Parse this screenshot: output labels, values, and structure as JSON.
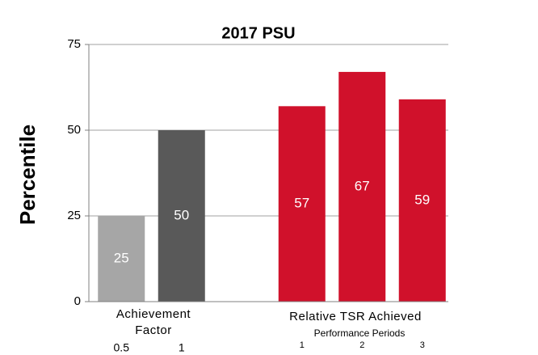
{
  "chart_data": {
    "type": "bar",
    "title": "2017 PSU",
    "y_label": "Percentile",
    "categories": [
      "0.5",
      "1",
      null,
      "1",
      "2",
      "3"
    ],
    "values": [
      25,
      50,
      null,
      57,
      67,
      59
    ],
    "colors": [
      "#a6a6a6",
      "#595959",
      null,
      "#d0112b",
      "#d0112b",
      "#d0112b"
    ],
    "group_labels": [
      "Achievement Factor",
      "Relative TSR Achieved"
    ],
    "x_subtitle": "Performance Periods",
    "ylim": [
      0,
      75
    ],
    "yticks": [
      0,
      25,
      50,
      75
    ],
    "grid": true
  }
}
